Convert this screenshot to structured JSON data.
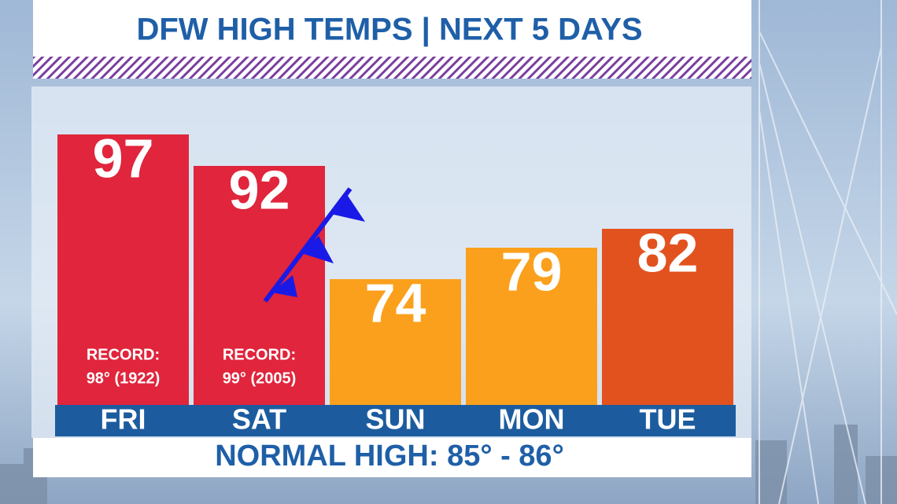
{
  "chart_data": {
    "type": "bar",
    "title": "DFW HIGH TEMPS | NEXT 5 DAYS",
    "categories": [
      "FRI",
      "SAT",
      "SUN",
      "MON",
      "TUE"
    ],
    "values": [
      97,
      92,
      74,
      79,
      82
    ],
    "colors": [
      "#e0253c",
      "#e0253c",
      "#fba01c",
      "#fba01c",
      "#e2521f"
    ],
    "record_labels": [
      [
        "RECORD:",
        "98° (1922)"
      ],
      [
        "RECORD:",
        "99° (2005)"
      ],
      null,
      null,
      null
    ],
    "footer": "NORMAL HIGH:  85° - 86°",
    "ylim": [
      54,
      100
    ]
  }
}
